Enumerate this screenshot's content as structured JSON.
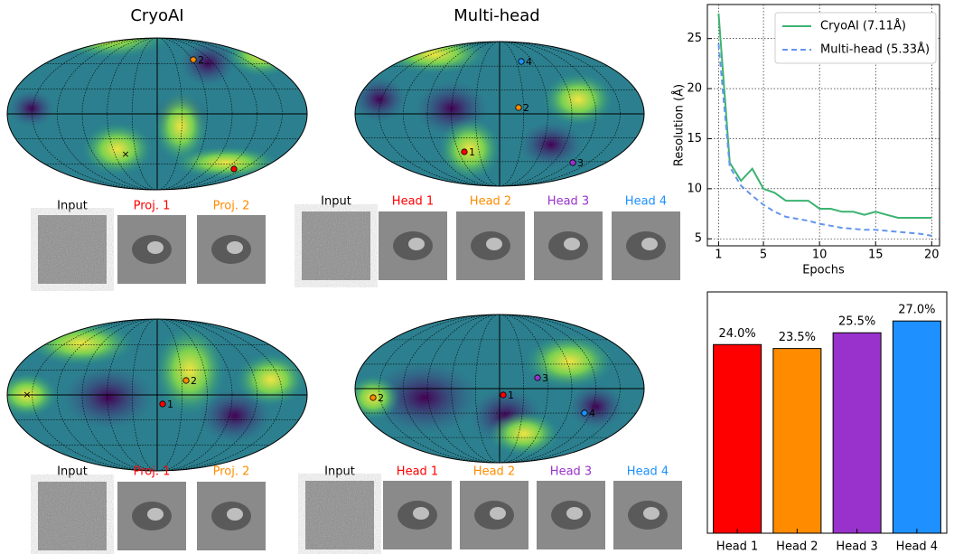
{
  "figure": {
    "titles": [
      "CryoAI",
      "Multi-head"
    ],
    "rows": [
      {
        "labels": [
          "Input",
          "Proj. 1",
          "Proj. 2"
        ]
      },
      {
        "labels": [
          "Input",
          "Head 1",
          "Head 2",
          "Head 3",
          "Head 4"
        ]
      },
      {
        "labels": [
          "Input",
          "Proj. 1",
          "Proj. 2"
        ]
      },
      {
        "labels": [
          "Input",
          "Head 1",
          "Head 2",
          "Head 3",
          "Head 4"
        ]
      }
    ],
    "maps": [
      {
        "points": [
          "2"
        ]
      },
      {
        "points": [
          "4",
          "2",
          "1",
          "3"
        ]
      },
      {
        "points": [
          "2",
          "1"
        ]
      },
      {
        "points": [
          "2",
          "1",
          "3",
          "4"
        ]
      }
    ]
  },
  "chart_data": [
    {
      "type": "line",
      "xlabel": "Epochs",
      "ylabel": "Resolution (Å)",
      "x": [
        1,
        2,
        3,
        4,
        5,
        6,
        7,
        8,
        9,
        10,
        11,
        12,
        13,
        14,
        15,
        16,
        17,
        18,
        19,
        20
      ],
      "series": [
        {
          "name": "CryoAI (7.11Å)",
          "color": "#3cb371",
          "style": "solid",
          "values": [
            27.5,
            12.6,
            10.8,
            12.0,
            10.0,
            9.6,
            8.8,
            8.8,
            8.8,
            8.0,
            8.0,
            7.7,
            7.7,
            7.4,
            7.7,
            7.4,
            7.1,
            7.1,
            7.1,
            7.1
          ]
        },
        {
          "name": "Multi-head (5.33Å)",
          "color": "#6495ed",
          "style": "dashed",
          "values": [
            24.5,
            12.2,
            10.3,
            9.3,
            8.4,
            7.7,
            7.2,
            7.0,
            6.8,
            6.5,
            6.3,
            6.1,
            6.0,
            5.9,
            5.9,
            5.8,
            5.7,
            5.6,
            5.5,
            5.3
          ]
        }
      ],
      "xlim": [
        0,
        20.7
      ],
      "ylim": [
        4.3,
        28.4
      ],
      "xticks": [
        1,
        5,
        10,
        15,
        20
      ],
      "yticks": [
        5,
        10,
        15,
        20,
        25
      ],
      "grid": true,
      "legend": "upper right"
    },
    {
      "type": "bar",
      "categories": [
        "Head 1",
        "Head 2",
        "Head 3",
        "Head 4"
      ],
      "values": [
        24.0,
        23.5,
        25.5,
        27.0
      ],
      "value_labels": [
        "24.0%",
        "23.5%",
        "25.5%",
        "27.0%"
      ],
      "colors": [
        "#ff0000",
        "#ff8c00",
        "#9932cc",
        "#1e90ff"
      ],
      "ylim": [
        0,
        30.7
      ]
    }
  ]
}
